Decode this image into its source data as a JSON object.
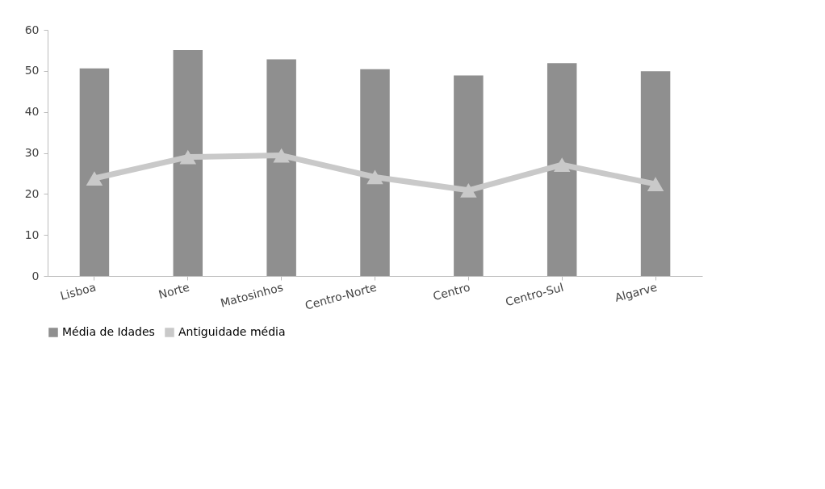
{
  "chart_data": {
    "type": "bar",
    "categories": [
      "Lisboa",
      "Norte",
      "Matosinhos",
      "Centro-Norte",
      "Centro",
      "Centro-Sul",
      "Algarve"
    ],
    "series": [
      {
        "name": "Média de Idades",
        "color": "#8f8f8f",
        "values": [
          50.6,
          55.1,
          52.8,
          50.4,
          48.9,
          51.9,
          49.9
        ]
      },
      {
        "name": "Antiguidade média",
        "type": "line",
        "marker": "triangle",
        "color": "#c9c9c9",
        "values": [
          23.8,
          29.0,
          29.4,
          24.1,
          20.9,
          27.1,
          22.4
        ]
      }
    ],
    "ylim": [
      0,
      60
    ],
    "yticks": [
      0,
      10,
      20,
      30,
      40,
      50,
      60
    ],
    "grid": false,
    "legend": "bottom"
  }
}
